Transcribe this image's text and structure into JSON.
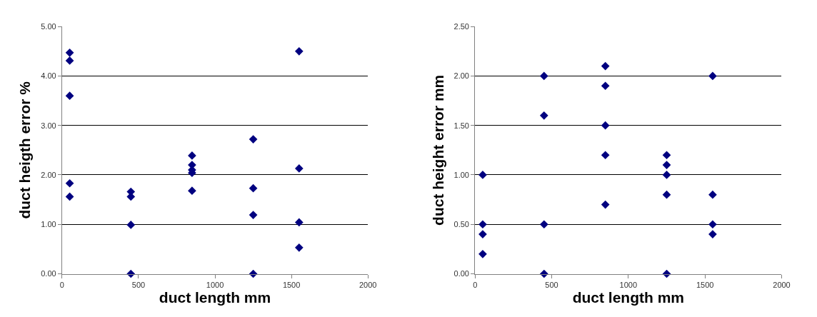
{
  "chart_data": [
    {
      "type": "scatter",
      "xlabel": "duct length mm",
      "ylabel": "duct heigth error %",
      "marker": "diamond",
      "grid": "y",
      "xlim": [
        0,
        2000
      ],
      "xticks": [
        0,
        500,
        1000,
        1500,
        2000
      ],
      "ylim": [
        0,
        5
      ],
      "yticks": [
        {
          "value": 0,
          "label": "0.00"
        },
        {
          "value": 1,
          "label": "1.00"
        },
        {
          "value": 2,
          "label": "2.00"
        },
        {
          "value": 3,
          "label": "3.00"
        },
        {
          "value": 4,
          "label": "4.00"
        },
        {
          "value": 5,
          "label": "5.00"
        }
      ],
      "series": [
        {
          "color": "#000080",
          "x": [
            50,
            50,
            50,
            50,
            50,
            450,
            450,
            450,
            450,
            850,
            850,
            850,
            850,
            850,
            1250,
            1250,
            1250,
            1250,
            1550,
            1550,
            1550,
            1550
          ],
          "values": [
            4.47,
            4.31,
            3.6,
            1.83,
            1.56,
            1.66,
            1.56,
            0.99,
            0.0,
            2.39,
            2.2,
            2.1,
            2.04,
            1.68,
            2.72,
            1.73,
            1.19,
            0.0,
            4.5,
            2.13,
            1.04,
            0.53
          ]
        }
      ]
    },
    {
      "type": "scatter",
      "xlabel": "duct length mm",
      "ylabel": "duct height error mm",
      "marker": "diamond",
      "grid": "y",
      "xlim": [
        0,
        2000
      ],
      "xticks": [
        0,
        500,
        1000,
        1500,
        2000
      ],
      "ylim": [
        0,
        2.5
      ],
      "yticks": [
        {
          "value": 0,
          "label": "0.00"
        },
        {
          "value": 0.5,
          "label": "0.50"
        },
        {
          "value": 1,
          "label": "1.00"
        },
        {
          "value": 1.5,
          "label": "1.50"
        },
        {
          "value": 2,
          "label": "2.00"
        },
        {
          "value": 2.5,
          "label": "2.50"
        }
      ],
      "series": [
        {
          "color": "#000080",
          "x": [
            50,
            50,
            50,
            50,
            450,
            450,
            450,
            450,
            850,
            850,
            850,
            850,
            850,
            1250,
            1250,
            1250,
            1250,
            1250,
            1550,
            1550,
            1550,
            1550
          ],
          "values": [
            1.0,
            0.5,
            0.4,
            0.2,
            2.0,
            1.6,
            0.5,
            0.0,
            2.1,
            1.9,
            1.5,
            1.2,
            0.7,
            1.2,
            1.1,
            1.0,
            0.8,
            0.0,
            2.0,
            0.8,
            0.5,
            0.4
          ]
        }
      ]
    }
  ]
}
